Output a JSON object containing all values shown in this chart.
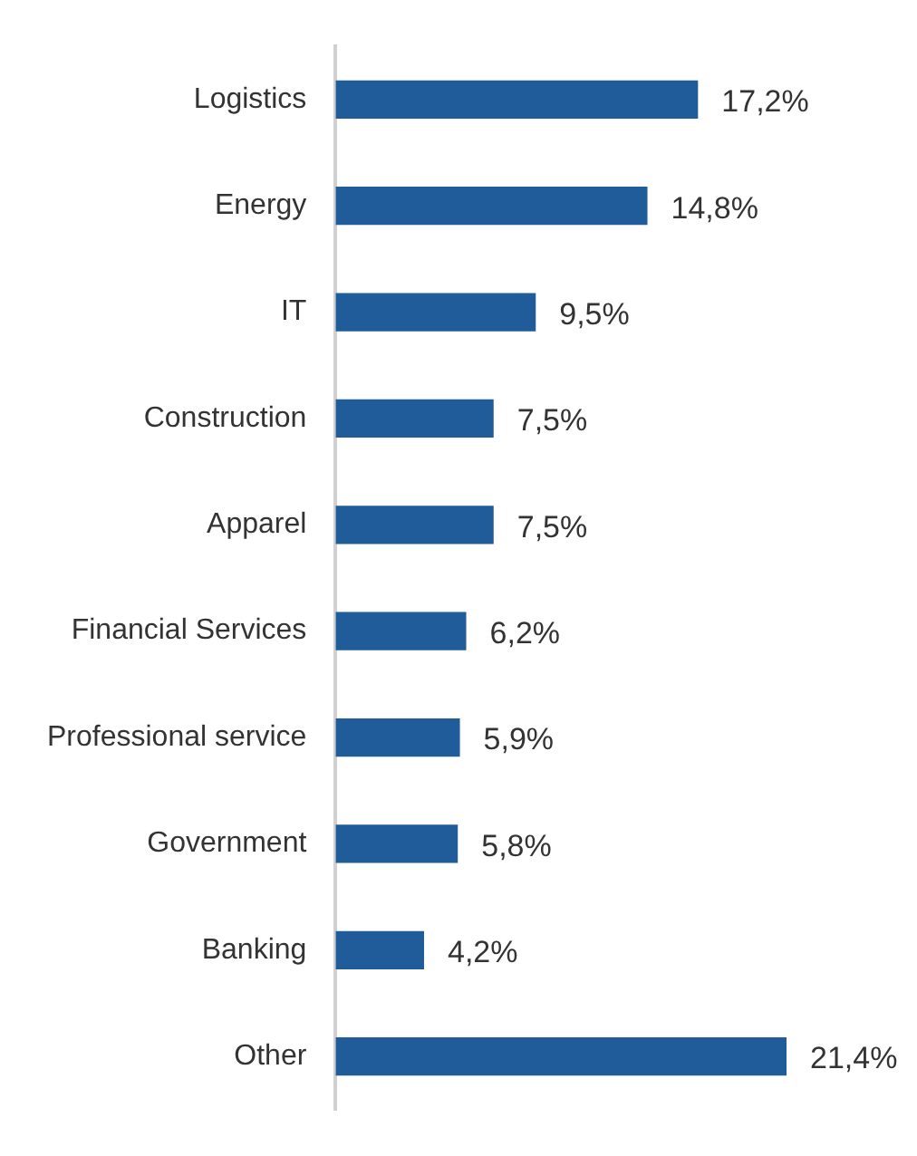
{
  "chart_data": {
    "type": "bar",
    "orientation": "horizontal",
    "categories": [
      "Logistics",
      "Energy",
      "IT",
      "Construction",
      "Apparel",
      "Financial Services",
      "Professional service",
      "Government",
      "Banking",
      "Other"
    ],
    "values": [
      17.2,
      14.8,
      9.5,
      7.5,
      7.5,
      6.2,
      5.9,
      5.8,
      4.2,
      21.4
    ],
    "value_labels": [
      "17,2%",
      "14,8%",
      "9,5%",
      "7,5%",
      "7,5%",
      "6,2%",
      "5,9%",
      "5,8%",
      "4,2%",
      "21,4%"
    ],
    "color": "#1f5c99",
    "legend": false
  }
}
